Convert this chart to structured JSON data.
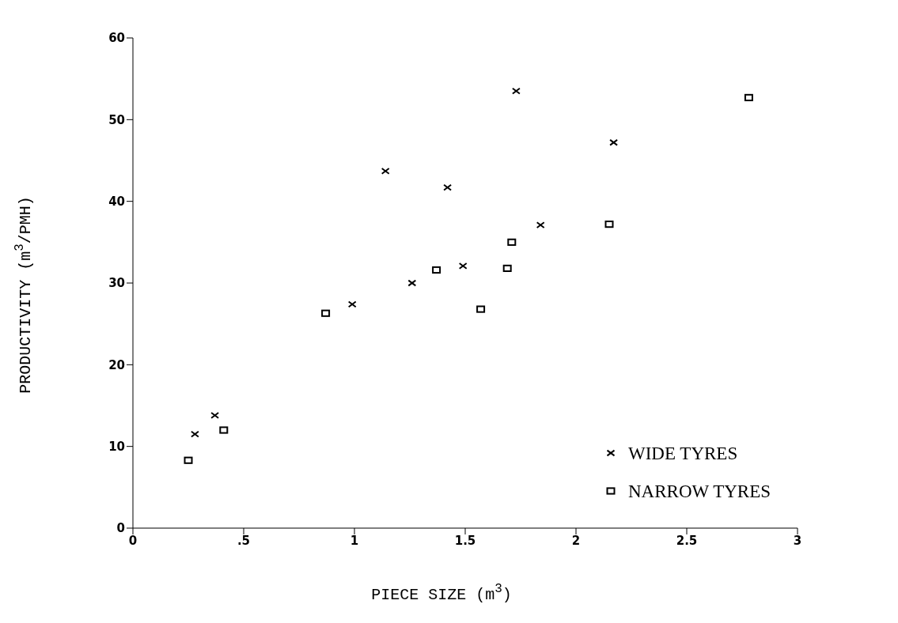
{
  "chart_data": {
    "type": "scatter",
    "xlabel": "PIECE SIZE (m$^{3}$)",
    "ylabel": "PRODUCTIVITY (m$^{3}$/PMH)",
    "xlim": [
      0,
      3
    ],
    "xticks": [
      0,
      {
        "value": 0.5,
        "label": ".5"
      },
      1,
      1.5,
      2,
      2.5,
      3
    ],
    "ylim": [
      0,
      60
    ],
    "yticks": [
      0,
      10,
      20,
      30,
      40,
      50,
      60
    ],
    "grid": false,
    "legend": "bottom right",
    "series": [
      {
        "name": "WIDE TYRES",
        "color": "#000000",
        "marker": "cross",
        "x": [
          0.28,
          0.37,
          0.99,
          1.14,
          1.26,
          1.42,
          1.49,
          1.73,
          1.84,
          2.17
        ],
        "values": [
          11.5,
          13.8,
          27.4,
          43.7,
          30.0,
          41.7,
          32.1,
          53.5,
          37.1,
          47.2
        ]
      },
      {
        "name": "NARROW TYRES",
        "color": "#000000",
        "marker": "square",
        "x": [
          0.25,
          0.41,
          0.87,
          1.37,
          1.57,
          1.69,
          1.71,
          2.15,
          2.78
        ],
        "values": [
          8.3,
          12.0,
          26.3,
          31.6,
          26.8,
          31.8,
          35.0,
          37.2,
          52.7
        ]
      }
    ]
  }
}
